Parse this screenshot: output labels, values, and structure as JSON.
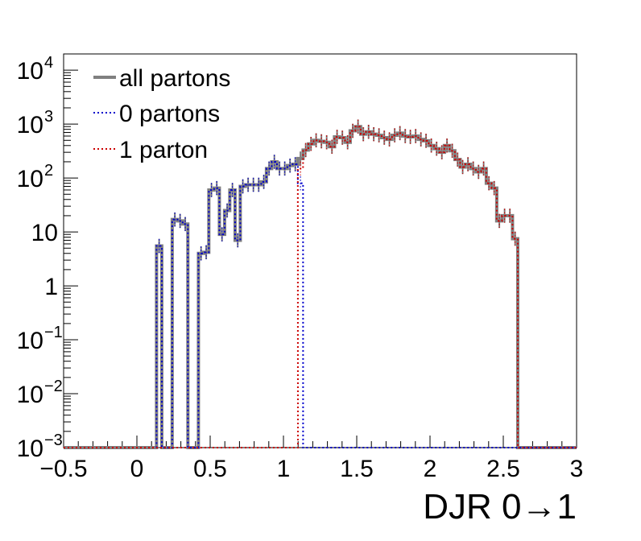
{
  "chart_data": {
    "type": "histogram",
    "xlabel": "DJR 0→1",
    "ylabel": "",
    "log_y": true,
    "xlim": [
      -0.5,
      3.0
    ],
    "ylim": [
      0.001,
      20000
    ],
    "bin_width": 0.0357,
    "x_ticks": [
      {
        "value": -0.5,
        "label": "−0.5"
      },
      {
        "value": 0,
        "label": "0"
      },
      {
        "value": 0.5,
        "label": "0.5"
      },
      {
        "value": 1,
        "label": "1"
      },
      {
        "value": 1.5,
        "label": "1.5"
      },
      {
        "value": 2,
        "label": "2"
      },
      {
        "value": 2.5,
        "label": "2.5"
      },
      {
        "value": 3,
        "label": "3"
      }
    ],
    "y_ticks": [
      {
        "value": 0.001,
        "base": "10",
        "exp": "−3"
      },
      {
        "value": 0.01,
        "base": "10",
        "exp": "−2"
      },
      {
        "value": 0.1,
        "base": "10",
        "exp": "−1"
      },
      {
        "value": 1,
        "base": "1",
        "exp": ""
      },
      {
        "value": 10,
        "base": "10",
        "exp": ""
      },
      {
        "value": 100,
        "base": "10",
        "exp": "2"
      },
      {
        "value": 1000,
        "base": "10",
        "exp": "3"
      },
      {
        "value": 10000,
        "base": "10",
        "exp": "4"
      }
    ],
    "legend_position": "top-left",
    "series": [
      {
        "name": "all partons",
        "color": "#808080",
        "style": "solid",
        "points": [
          [
            0.134,
            5.5
          ],
          [
            0.17,
            0.001
          ],
          [
            0.205,
            0.001
          ],
          [
            0.241,
            17
          ],
          [
            0.277,
            16
          ],
          [
            0.312,
            14
          ],
          [
            0.348,
            0.001
          ],
          [
            0.384,
            0.001
          ],
          [
            0.42,
            4
          ],
          [
            0.455,
            4.2
          ],
          [
            0.491,
            60
          ],
          [
            0.527,
            65
          ],
          [
            0.563,
            9
          ],
          [
            0.598,
            25
          ],
          [
            0.634,
            60
          ],
          [
            0.67,
            7
          ],
          [
            0.705,
            70
          ],
          [
            0.741,
            75
          ],
          [
            0.777,
            75
          ],
          [
            0.813,
            75
          ],
          [
            0.848,
            85
          ],
          [
            0.884,
            150
          ],
          [
            0.92,
            200
          ],
          [
            0.955,
            150
          ],
          [
            0.991,
            150
          ],
          [
            1.027,
            170
          ],
          [
            1.063,
            180
          ],
          [
            1.098,
            230
          ],
          [
            1.134,
            330
          ],
          [
            1.17,
            430
          ],
          [
            1.205,
            500
          ],
          [
            1.241,
            480
          ],
          [
            1.277,
            460
          ],
          [
            1.313,
            380
          ],
          [
            1.348,
            580
          ],
          [
            1.384,
            560
          ],
          [
            1.42,
            460
          ],
          [
            1.455,
            750
          ],
          [
            1.491,
            900
          ],
          [
            1.527,
            650
          ],
          [
            1.563,
            720
          ],
          [
            1.598,
            650
          ],
          [
            1.634,
            620
          ],
          [
            1.67,
            560
          ],
          [
            1.705,
            520
          ],
          [
            1.741,
            620
          ],
          [
            1.777,
            680
          ],
          [
            1.813,
            600
          ],
          [
            1.848,
            580
          ],
          [
            1.884,
            600
          ],
          [
            1.92,
            520
          ],
          [
            1.955,
            490
          ],
          [
            1.991,
            400
          ],
          [
            2.027,
            350
          ],
          [
            2.063,
            300
          ],
          [
            2.098,
            400
          ],
          [
            2.134,
            320
          ],
          [
            2.17,
            220
          ],
          [
            2.205,
            160
          ],
          [
            2.241,
            180
          ],
          [
            2.277,
            150
          ],
          [
            2.313,
            130
          ],
          [
            2.348,
            150
          ],
          [
            2.384,
            80
          ],
          [
            2.42,
            65
          ],
          [
            2.455,
            16
          ],
          [
            2.491,
            20
          ],
          [
            2.527,
            20
          ],
          [
            2.563,
            7.5
          ]
        ]
      },
      {
        "name": "0 partons",
        "color": "#0000cc",
        "style": "dotted",
        "points": [
          [
            0.134,
            5.5
          ],
          [
            0.17,
            0.001
          ],
          [
            0.205,
            0.001
          ],
          [
            0.241,
            17
          ],
          [
            0.277,
            16
          ],
          [
            0.312,
            14
          ],
          [
            0.348,
            0.001
          ],
          [
            0.384,
            0.001
          ],
          [
            0.42,
            4
          ],
          [
            0.455,
            4.2
          ],
          [
            0.491,
            60
          ],
          [
            0.527,
            65
          ],
          [
            0.563,
            9
          ],
          [
            0.598,
            25
          ],
          [
            0.634,
            60
          ],
          [
            0.67,
            7
          ],
          [
            0.705,
            70
          ],
          [
            0.741,
            75
          ],
          [
            0.777,
            75
          ],
          [
            0.813,
            75
          ],
          [
            0.848,
            85
          ],
          [
            0.884,
            150
          ],
          [
            0.92,
            200
          ],
          [
            0.955,
            150
          ],
          [
            0.991,
            150
          ],
          [
            1.027,
            170
          ],
          [
            1.063,
            180
          ],
          [
            1.098,
            80
          ],
          [
            1.134,
            0.001
          ]
        ]
      },
      {
        "name": "1 parton",
        "color": "#cc0000",
        "style": "dotted",
        "points": [
          [
            1.063,
            0.001
          ],
          [
            1.098,
            150
          ],
          [
            1.134,
            330
          ],
          [
            1.17,
            430
          ],
          [
            1.205,
            500
          ],
          [
            1.241,
            480
          ],
          [
            1.277,
            460
          ],
          [
            1.313,
            380
          ],
          [
            1.348,
            580
          ],
          [
            1.384,
            560
          ],
          [
            1.42,
            460
          ],
          [
            1.455,
            750
          ],
          [
            1.491,
            900
          ],
          [
            1.527,
            650
          ],
          [
            1.563,
            720
          ],
          [
            1.598,
            650
          ],
          [
            1.634,
            620
          ],
          [
            1.67,
            560
          ],
          [
            1.705,
            520
          ],
          [
            1.741,
            620
          ],
          [
            1.777,
            680
          ],
          [
            1.813,
            600
          ],
          [
            1.848,
            580
          ],
          [
            1.884,
            600
          ],
          [
            1.92,
            520
          ],
          [
            1.955,
            490
          ],
          [
            1.991,
            400
          ],
          [
            2.027,
            350
          ],
          [
            2.063,
            300
          ],
          [
            2.098,
            400
          ],
          [
            2.134,
            320
          ],
          [
            2.17,
            220
          ],
          [
            2.205,
            160
          ],
          [
            2.241,
            180
          ],
          [
            2.277,
            150
          ],
          [
            2.313,
            130
          ],
          [
            2.348,
            150
          ],
          [
            2.384,
            80
          ],
          [
            2.42,
            65
          ],
          [
            2.455,
            16
          ],
          [
            2.491,
            20
          ],
          [
            2.527,
            20
          ],
          [
            2.563,
            7.5
          ]
        ]
      }
    ]
  }
}
